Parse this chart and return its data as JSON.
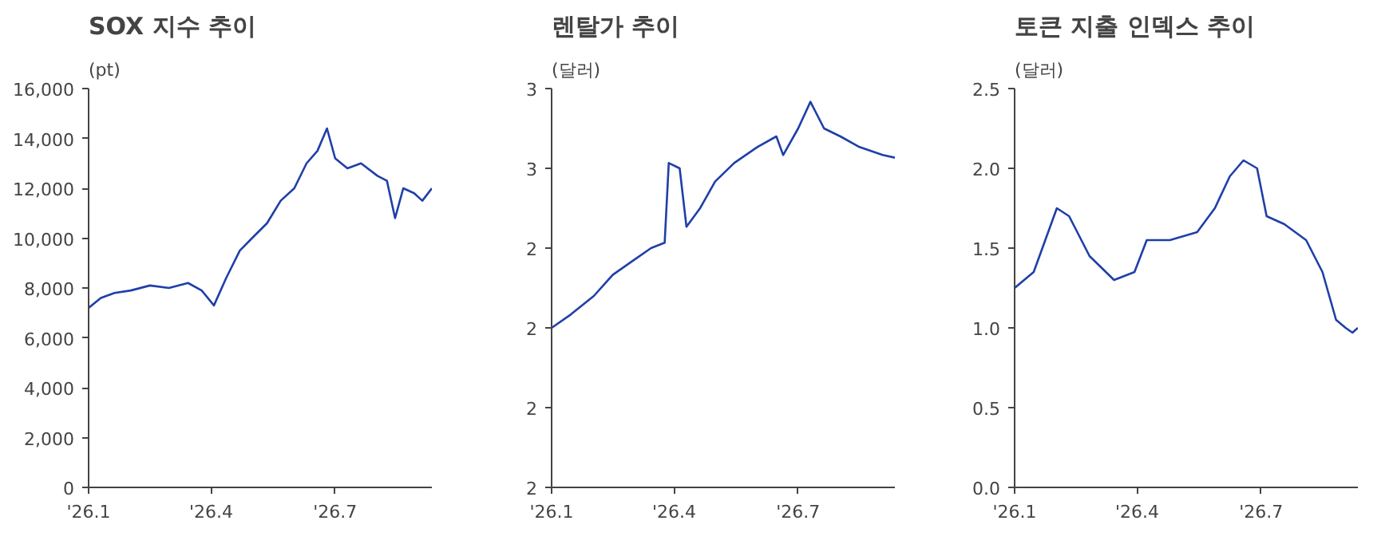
{
  "chart_data": [
    {
      "type": "line",
      "title": "SOX 지수 추이",
      "ylabel": "(pt)",
      "xlim": [
        "2026-01-01",
        "2026-09-10"
      ],
      "xticks": [
        {
          "value": "2026-01-01",
          "label": "'26.1"
        },
        {
          "value": "2026-04-01",
          "label": "'26.4"
        },
        {
          "value": "2026-07-01",
          "label": "'26.7"
        }
      ],
      "ylim": [
        0,
        16000
      ],
      "yticks": [
        {
          "value": 0,
          "label": "0"
        },
        {
          "value": 2000,
          "label": "2,000"
        },
        {
          "value": 4000,
          "label": "4,000"
        },
        {
          "value": 6000,
          "label": "6,000"
        },
        {
          "value": 8000,
          "label": "8,000"
        },
        {
          "value": 10000,
          "label": "10,000"
        },
        {
          "value": 12000,
          "label": "12,000"
        },
        {
          "value": 14000,
          "label": "14,000"
        },
        {
          "value": 16000,
          "label": "16,000"
        }
      ],
      "grid": false,
      "x": [
        "2026-01-01",
        "2026-01-10",
        "2026-01-20",
        "2026-02-01",
        "2026-02-15",
        "2026-03-01",
        "2026-03-15",
        "2026-03-25",
        "2026-04-03",
        "2026-04-12",
        "2026-04-22",
        "2026-05-01",
        "2026-05-12",
        "2026-05-22",
        "2026-06-01",
        "2026-06-10",
        "2026-06-18",
        "2026-06-25",
        "2026-07-01",
        "2026-07-10",
        "2026-07-20",
        "2026-08-01",
        "2026-08-08",
        "2026-08-14",
        "2026-08-20",
        "2026-08-28",
        "2026-09-03",
        "2026-09-10"
      ],
      "series": [
        {
          "color": "#1f3fa8",
          "values": [
            7200,
            7600,
            7800,
            7900,
            8100,
            8000,
            8200,
            7900,
            7300,
            8400,
            9500,
            10000,
            10600,
            11500,
            12000,
            13000,
            13500,
            14400,
            13200,
            12800,
            13000,
            12500,
            12300,
            10800,
            12000,
            11800,
            11500,
            12000
          ]
        }
      ]
    },
    {
      "type": "line",
      "title": "렌탈가 추이",
      "ylabel": "(달러)",
      "xlim": [
        "2026-01-01",
        "2026-09-10"
      ],
      "xticks": [
        {
          "value": "2026-01-01",
          "label": "'26.1"
        },
        {
          "value": "2026-04-01",
          "label": "'26.4"
        },
        {
          "value": "2026-07-01",
          "label": "'26.7"
        }
      ],
      "ylim": [
        1.5,
        3.0
      ],
      "yticks": [
        {
          "value": 1.5,
          "label": "2"
        },
        {
          "value": 1.8,
          "label": "2"
        },
        {
          "value": 2.1,
          "label": "2"
        },
        {
          "value": 2.4,
          "label": "2"
        },
        {
          "value": 2.7,
          "label": "3"
        },
        {
          "value": 3.0,
          "label": "3"
        }
      ],
      "grid": false,
      "x": [
        "2026-01-01",
        "2026-01-15",
        "2026-02-01",
        "2026-02-15",
        "2026-03-01",
        "2026-03-15",
        "2026-03-25",
        "2026-03-28",
        "2026-04-05",
        "2026-04-10",
        "2026-04-20",
        "2026-05-01",
        "2026-05-15",
        "2026-06-01",
        "2026-06-15",
        "2026-06-20",
        "2026-07-01",
        "2026-07-10",
        "2026-07-20",
        "2026-08-01",
        "2026-08-15",
        "2026-09-01",
        "2026-09-10"
      ],
      "series": [
        {
          "color": "#1f3fa8",
          "values": [
            2.1,
            2.15,
            2.22,
            2.3,
            2.35,
            2.4,
            2.42,
            2.72,
            2.7,
            2.48,
            2.55,
            2.65,
            2.72,
            2.78,
            2.82,
            2.75,
            2.85,
            2.95,
            2.85,
            2.82,
            2.78,
            2.75,
            2.74
          ]
        }
      ]
    },
    {
      "type": "line",
      "title": "토큰 지출 인덱스 추이",
      "ylabel": "(달러)",
      "xlim": [
        "2026-01-01",
        "2026-09-10"
      ],
      "xticks": [
        {
          "value": "2026-01-01",
          "label": "'26.1"
        },
        {
          "value": "2026-04-01",
          "label": "'26.4"
        },
        {
          "value": "2026-07-01",
          "label": "'26.7"
        }
      ],
      "ylim": [
        0,
        2.5
      ],
      "yticks": [
        {
          "value": 0,
          "label": "0.0"
        },
        {
          "value": 0.5,
          "label": "0.5"
        },
        {
          "value": 1.0,
          "label": "1.0"
        },
        {
          "value": 1.5,
          "label": "1.5"
        },
        {
          "value": 2.0,
          "label": "2.0"
        },
        {
          "value": 2.5,
          "label": "2.5"
        }
      ],
      "grid": false,
      "x": [
        "2026-01-01",
        "2026-01-15",
        "2026-02-01",
        "2026-02-10",
        "2026-02-25",
        "2026-03-15",
        "2026-03-30",
        "2026-04-08",
        "2026-04-25",
        "2026-05-15",
        "2026-05-28",
        "2026-06-08",
        "2026-06-18",
        "2026-06-28",
        "2026-07-05",
        "2026-07-18",
        "2026-08-03",
        "2026-08-15",
        "2026-08-25",
        "2026-09-01",
        "2026-09-06",
        "2026-09-10"
      ],
      "series": [
        {
          "color": "#1f3fa8",
          "values": [
            1.25,
            1.35,
            1.75,
            1.7,
            1.45,
            1.3,
            1.35,
            1.55,
            1.55,
            1.6,
            1.75,
            1.95,
            2.05,
            2.0,
            1.7,
            1.65,
            1.55,
            1.35,
            1.05,
            1.0,
            0.97,
            1.0
          ]
        }
      ]
    }
  ]
}
